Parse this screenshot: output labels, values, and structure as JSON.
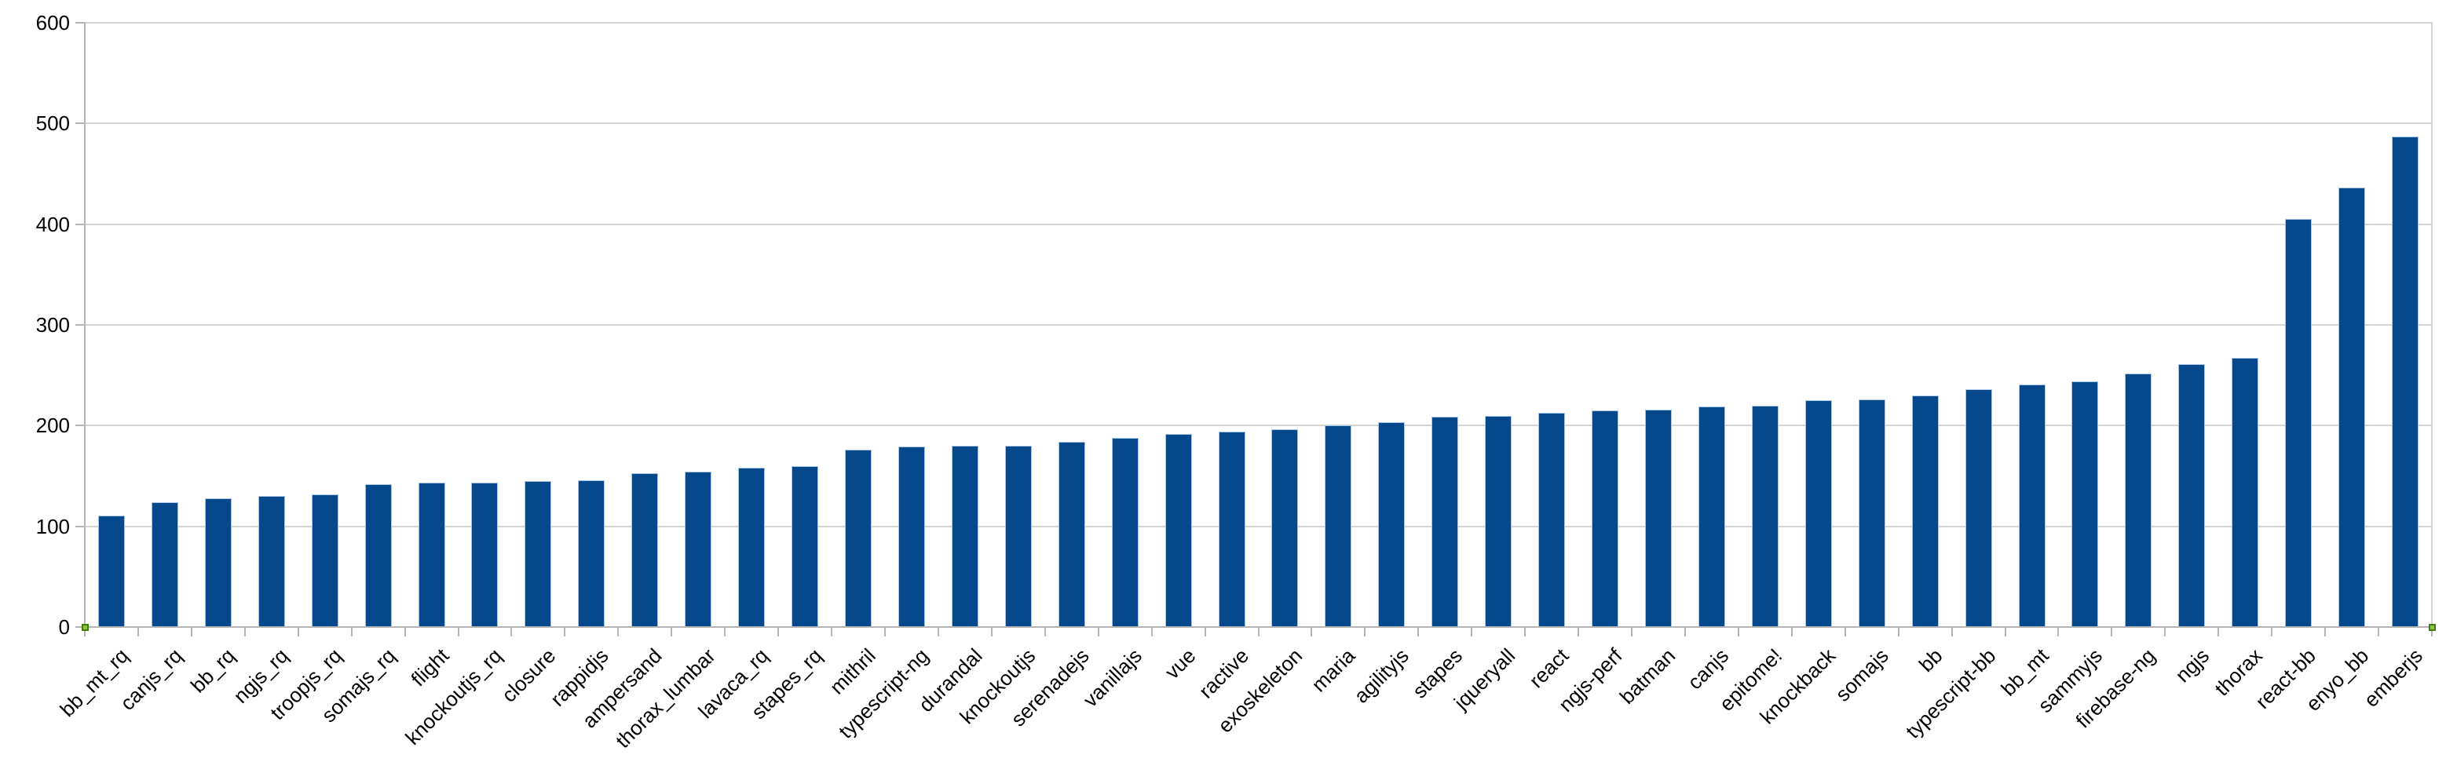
{
  "chart_data": {
    "type": "bar",
    "title": "",
    "xlabel": "",
    "ylabel": "",
    "ylim": [
      0,
      600
    ],
    "yticks": [
      0,
      100,
      200,
      300,
      400,
      500,
      600
    ],
    "grid": true,
    "legend": "none",
    "x_tick_label_rotation_deg": -45,
    "categories": [
      "bb_mt_rq",
      "canjs_rq",
      "bb_rq",
      "ngjs_rq",
      "troopjs_rq",
      "somajs_rq",
      "flight",
      "knockoutjs_rq",
      "closure",
      "rappidjs",
      "ampersand",
      "thorax_lumbar",
      "lavaca_rq",
      "stapes_rq",
      "mithril",
      "typescript-ng",
      "durandal",
      "knockoutjs",
      "serenadejs",
      "vanillajs",
      "vue",
      "ractive",
      "exoskeleton",
      "maria",
      "agilityjs",
      "stapes",
      "jqueryall",
      "react",
      "ngjs-perf",
      "batman",
      "canjs",
      "epitome!",
      "knockback",
      "somajs",
      "bb",
      "typescript-bb",
      "bb_mt",
      "sammyjs",
      "firebase-ng",
      "ngjs",
      "thorax",
      "react-bb",
      "enyo_bb",
      "emberjs"
    ],
    "values": [
      111,
      124,
      128,
      130,
      132,
      142,
      143,
      143,
      145,
      146,
      153,
      154,
      158,
      160,
      176,
      179,
      180,
      180,
      184,
      188,
      192,
      194,
      196,
      200,
      203,
      209,
      210,
      213,
      215,
      216,
      219,
      220,
      225,
      226,
      230,
      236,
      241,
      244,
      252,
      261,
      267,
      405,
      436,
      487
    ],
    "colors": {
      "bar_fill": "#05498c",
      "bar_border": "#aac4e4",
      "gridline": "#d4d4d4",
      "axis": "#b5b5b5",
      "tick": "#b5b5b5",
      "text": "#000000",
      "background": "#ffffff",
      "selection_handle_fill": "#8cc63f",
      "selection_handle_border": "#3e7d0e"
    }
  }
}
